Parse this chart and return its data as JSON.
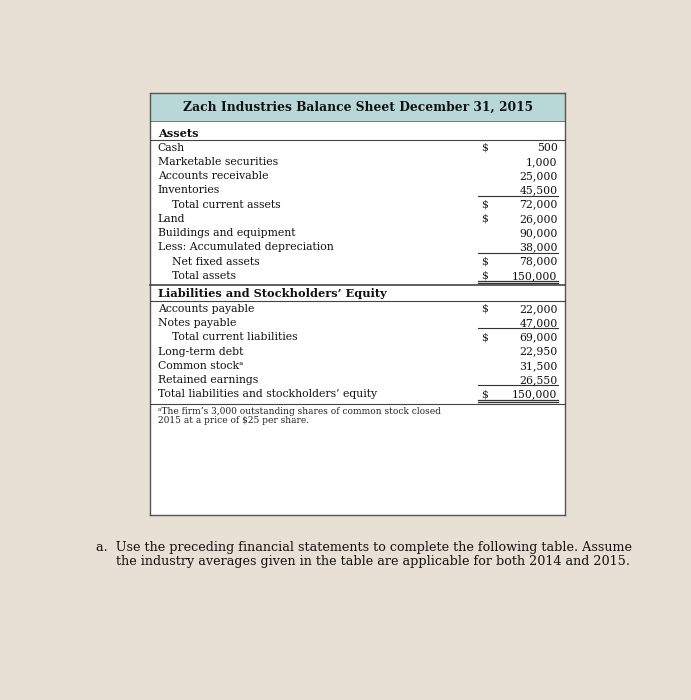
{
  "title": "Zach Industries Balance Sheet December 31, 2015",
  "title_bg": "#b8d8d8",
  "paper_color": "#e8e0d4",
  "assets_header": "Assets",
  "assets_rows": [
    {
      "label": "Cash",
      "dollar": "$",
      "value": "500",
      "indent": false,
      "underline": false,
      "underline_double": false
    },
    {
      "label": "Marketable securities",
      "dollar": "",
      "value": "1,000",
      "indent": false,
      "underline": false,
      "underline_double": false
    },
    {
      "label": "Accounts receivable",
      "dollar": "",
      "value": "25,000",
      "indent": false,
      "underline": false,
      "underline_double": false
    },
    {
      "label": "Inventories",
      "dollar": "",
      "value": "45,500",
      "indent": false,
      "underline": true,
      "underline_double": false
    },
    {
      "label": "Total current assets",
      "dollar": "$",
      "value": "72,000",
      "indent": true,
      "underline": false,
      "underline_double": false
    },
    {
      "label": "Land",
      "dollar": "$",
      "value": "26,000",
      "indent": false,
      "underline": false,
      "underline_double": false
    },
    {
      "label": "Buildings and equipment",
      "dollar": "",
      "value": "90,000",
      "indent": false,
      "underline": false,
      "underline_double": false
    },
    {
      "label": "Less: Accumulated depreciation",
      "dollar": "",
      "value": "38,000",
      "indent": false,
      "underline": true,
      "underline_double": false
    },
    {
      "label": "Net fixed assets",
      "dollar": "$",
      "value": "78,000",
      "indent": true,
      "underline": false,
      "underline_double": false
    },
    {
      "label": "Total assets",
      "dollar": "$",
      "value": "150,000",
      "indent": true,
      "underline": false,
      "underline_double": true
    }
  ],
  "liabilities_header": "Liabilities and Stockholders’ Equity",
  "liabilities_rows": [
    {
      "label": "Accounts payable",
      "dollar": "$",
      "value": "22,000",
      "indent": false,
      "underline": false,
      "underline_double": false
    },
    {
      "label": "Notes payable",
      "dollar": "",
      "value": "47,000",
      "indent": false,
      "underline": true,
      "underline_double": false
    },
    {
      "label": "Total current liabilities",
      "dollar": "$",
      "value": "69,000",
      "indent": true,
      "underline": false,
      "underline_double": false
    },
    {
      "label": "Long-term debt",
      "dollar": "",
      "value": "22,950",
      "indent": false,
      "underline": false,
      "underline_double": false
    },
    {
      "label": "Common stockᵃ",
      "dollar": "",
      "value": "31,500",
      "indent": false,
      "underline": false,
      "underline_double": false
    },
    {
      "label": "Retained earnings",
      "dollar": "",
      "value": "26,550",
      "indent": false,
      "underline": true,
      "underline_double": false
    },
    {
      "label": "Total liabilities and stockholders’ equity",
      "dollar": "$",
      "value": "150,000",
      "indent": false,
      "underline": false,
      "underline_double": true
    }
  ],
  "footnote_line1": "ᵃThe firm’s 3,000 outstanding shares of common stock closed",
  "footnote_line2": "2015 at a price of $25 per share.",
  "bottom_line1": "a.  Use the preceding financial statements to complete the following table. Assume",
  "bottom_line2": "     the industry averages given in the table are applicable for both 2014 and 2015."
}
